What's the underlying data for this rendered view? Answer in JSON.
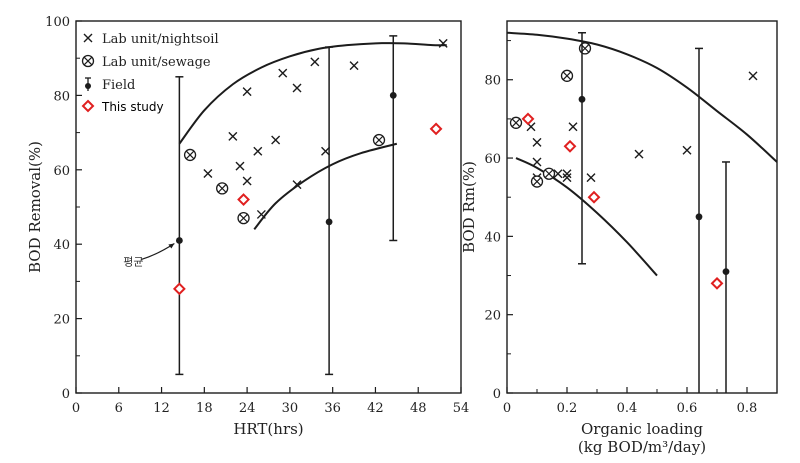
{
  "chart_data": [
    {
      "type": "scatter",
      "xlabel": "HRT(hrs)",
      "ylabel": "BOD Removal(%)",
      "xlim": [
        0,
        54
      ],
      "ylim": [
        0,
        100
      ],
      "xticks": [
        "0",
        "6",
        "12",
        "18",
        "24",
        "30",
        "36",
        "42",
        "48",
        "54"
      ],
      "yticks": [
        "0",
        "20",
        "40",
        "60",
        "80",
        "100"
      ],
      "annotation": "평균",
      "legend": [
        "Lab unit/nightsoil",
        "Lab unit/sewage",
        "Field",
        "This study"
      ],
      "series": [
        {
          "name": "Lab unit/nightsoil",
          "marker": "x",
          "x": [
            18.5,
            22,
            23,
            24,
            24,
            25.5,
            26,
            28,
            29,
            31,
            31,
            33.5,
            35,
            39,
            51.5
          ],
          "y": [
            59,
            69,
            61,
            81,
            57,
            65,
            48,
            68,
            86,
            56,
            82,
            89,
            65,
            88,
            94
          ]
        },
        {
          "name": "Lab unit/sewage",
          "marker": "circled-x",
          "x": [
            16,
            20.5,
            23.5,
            42.5
          ],
          "y": [
            64,
            55,
            47,
            68
          ]
        },
        {
          "name": "Field",
          "marker": "dot-errorbar",
          "x": [
            14.5,
            35.5,
            44.5
          ],
          "y": [
            41,
            46,
            80
          ],
          "ylow": [
            5,
            5,
            41
          ],
          "yhigh": [
            85,
            93,
            96
          ]
        },
        {
          "name": "This study",
          "marker": "diamond",
          "color": "#e02020",
          "x": [
            14.5,
            23.5,
            50.5
          ],
          "y": [
            28,
            52,
            71
          ]
        }
      ],
      "curves": [
        {
          "name": "upper envelope",
          "x": [
            14.5,
            18,
            22,
            26,
            30,
            34,
            38,
            42,
            46,
            50,
            52
          ],
          "y": [
            67,
            76,
            83,
            87.5,
            90.5,
            92.5,
            93.5,
            94,
            94,
            93.5,
            93.5
          ]
        },
        {
          "name": "lower envelope",
          "x": [
            25,
            28,
            32,
            36,
            40,
            45
          ],
          "y": [
            44,
            51,
            57,
            61.5,
            64.5,
            67
          ]
        }
      ]
    },
    {
      "type": "scatter",
      "xlabel": "Organic loading",
      "xlabel2": "(kg BOD/m³/day)",
      "ylabel": "BOD Rm(%)",
      "xlim": [
        0,
        0.9
      ],
      "ylim": [
        0,
        95
      ],
      "xticks": [
        "0",
        "0.2",
        "0.4",
        "0.6",
        "0.8"
      ],
      "yticks": [
        "0",
        "20",
        "40",
        "60",
        "80"
      ],
      "series": [
        {
          "name": "Lab unit/nightsoil",
          "marker": "x",
          "x": [
            0.08,
            0.1,
            0.1,
            0.1,
            0.17,
            0.2,
            0.2,
            0.22,
            0.28,
            0.44,
            0.6,
            0.82
          ],
          "y": [
            68,
            64,
            59,
            55,
            56,
            55,
            56,
            68,
            55,
            61,
            62,
            81
          ]
        },
        {
          "name": "Lab unit/sewage",
          "marker": "circled-x",
          "x": [
            0.03,
            0.1,
            0.14,
            0.2,
            0.26
          ],
          "y": [
            69,
            54,
            56,
            81,
            88
          ]
        },
        {
          "name": "Field",
          "marker": "dot-errorbar",
          "x": [
            0.25,
            0.64,
            0.73
          ],
          "y": [
            75,
            45,
            31
          ],
          "ylow": [
            33,
            0,
            0
          ],
          "yhigh": [
            92,
            88,
            59
          ]
        },
        {
          "name": "This study",
          "marker": "diamond",
          "color": "#e02020",
          "x": [
            0.07,
            0.21,
            0.29,
            0.7
          ],
          "y": [
            70,
            63,
            50,
            28
          ]
        }
      ],
      "curves": [
        {
          "name": "upper envelope",
          "x": [
            0,
            0.1,
            0.2,
            0.3,
            0.4,
            0.5,
            0.6,
            0.7,
            0.8,
            0.9
          ],
          "y": [
            92,
            91.5,
            90.5,
            89,
            86.5,
            83,
            78,
            72,
            66,
            59
          ]
        },
        {
          "name": "lower envelope",
          "x": [
            0.03,
            0.1,
            0.2,
            0.3,
            0.4,
            0.5
          ],
          "y": [
            60,
            57.5,
            52.5,
            46,
            38.5,
            30
          ]
        }
      ]
    }
  ]
}
